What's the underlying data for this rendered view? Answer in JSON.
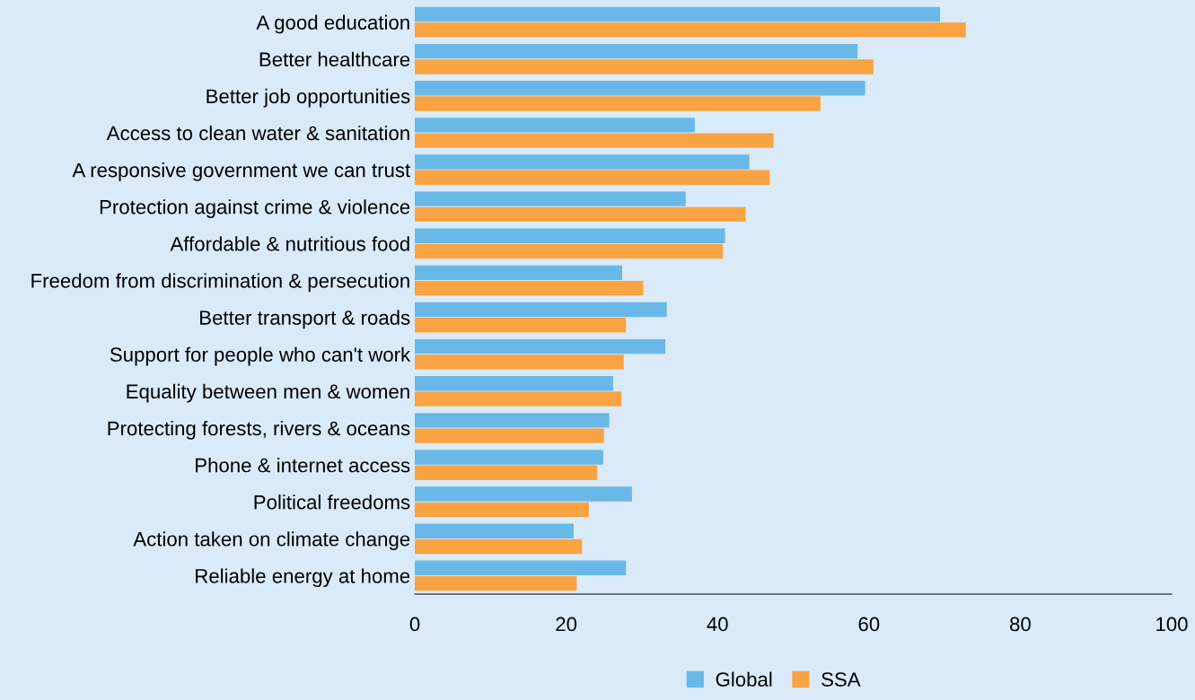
{
  "chart_data": {
    "type": "bar",
    "orientation": "horizontal",
    "categories": [
      "A good education",
      "Better healthcare",
      "Better job opportunities",
      "Access to clean water & sanitation",
      "A responsive government we can trust",
      "Protection against crime & violence",
      "Affordable & nutritious food",
      "Freedom from discrimination & persecution",
      "Better transport & roads",
      "Support for people who can't work",
      "Equality between men & women",
      "Protecting forests, rivers & oceans",
      "Phone & internet access",
      "Political freedoms",
      "Action taken on climate change",
      "Reliable energy at home"
    ],
    "series": [
      {
        "name": "Global",
        "color": "#69b9e8",
        "values": [
          69.4,
          58.5,
          59.5,
          37.0,
          44.2,
          35.8,
          41.0,
          27.4,
          33.3,
          33.1,
          26.2,
          25.7,
          24.9,
          28.7,
          21.0,
          27.9
        ]
      },
      {
        "name": "SSA",
        "color": "#f9a343",
        "values": [
          72.8,
          60.6,
          53.6,
          47.4,
          46.9,
          43.7,
          40.7,
          30.2,
          27.9,
          27.6,
          27.3,
          25.0,
          24.1,
          23.0,
          22.1,
          21.4
        ]
      }
    ],
    "xlim": [
      0,
      100
    ],
    "xticks": [
      0,
      20,
      40,
      60,
      80,
      100
    ],
    "grid": false,
    "legend": "bottom"
  }
}
